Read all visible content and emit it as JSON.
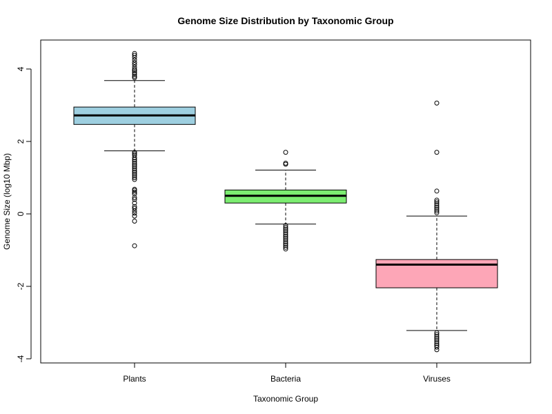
{
  "chart_data": {
    "type": "boxplot",
    "title": "Genome Size Distribution by Taxonomic Group",
    "xlabel": "Taxonomic Group",
    "ylabel": "Genome Size (log10 Mbp)",
    "ylim": [
      -4.1,
      4.8
    ],
    "y_ticks": [
      4,
      2,
      0,
      -2,
      -4
    ],
    "y_tick_labels": [
      "4",
      "2",
      "0",
      "-2",
      "-4"
    ],
    "grid": false,
    "categories": [
      "Plants",
      "Bacteria",
      "Viruses"
    ],
    "series": [
      {
        "category": "Plants",
        "color": "#9ECFE0",
        "whisker_low": 1.74,
        "q1": 2.47,
        "median": 2.72,
        "q3": 2.95,
        "whisker_high": 3.68,
        "outliers": [
          4.43,
          4.38,
          4.32,
          4.25,
          4.18,
          4.12,
          4.05,
          3.99,
          3.95,
          3.9,
          3.85,
          3.8,
          3.76,
          1.7,
          1.66,
          1.62,
          1.55,
          1.5,
          1.45,
          1.4,
          1.35,
          1.3,
          1.25,
          1.2,
          1.15,
          1.1,
          1.05,
          1.0,
          0.95,
          0.68,
          0.65,
          0.6,
          0.55,
          0.45,
          0.4,
          0.3,
          0.2,
          0.15,
          0.08,
          0.02,
          -0.06,
          -0.2,
          -0.88
        ]
      },
      {
        "category": "Bacteria",
        "color": "#7CED71",
        "whisker_low": -0.28,
        "q1": 0.3,
        "median": 0.5,
        "q3": 0.66,
        "whisker_high": 1.21,
        "outliers": [
          1.7,
          1.4,
          1.37,
          -0.32,
          -0.37,
          -0.42,
          -0.47,
          -0.52,
          -0.57,
          -0.62,
          -0.67,
          -0.72,
          -0.77,
          -0.82,
          -0.87,
          -0.92,
          -0.97
        ]
      },
      {
        "category": "Viruses",
        "color": "#FDA6B7",
        "whisker_low": -3.22,
        "q1": -2.04,
        "median": -1.4,
        "q3": -1.26,
        "whisker_high": -0.06,
        "outliers": [
          3.06,
          1.7,
          0.63,
          0.38,
          0.33,
          0.28,
          0.23,
          0.18,
          0.13,
          0.08,
          0.03,
          -3.28,
          -3.33,
          -3.38,
          -3.43,
          -3.48,
          -3.53,
          -3.58,
          -3.63,
          -3.68,
          -3.75
        ]
      }
    ]
  }
}
